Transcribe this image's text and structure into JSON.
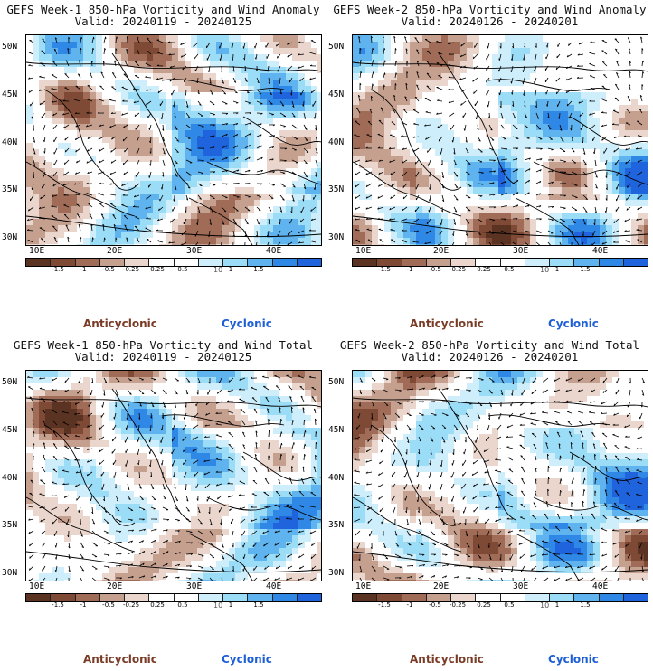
{
  "panels": [
    {
      "title": "GEFS Week-1 850-hPa Vorticity and Wind Anomaly",
      "valid": "Valid: 20240119 - 20240125",
      "variant": 0
    },
    {
      "title": "GEFS Week-2 850-hPa Vorticity and Wind Anomaly",
      "valid": "Valid: 20240126 - 20240201",
      "variant": 1
    },
    {
      "title": "GEFS Week-1 850-hPa Vorticity and Wind Total",
      "valid": "Valid: 20240119 - 20240125",
      "variant": 2
    },
    {
      "title": "GEFS Week-2 850-hPa Vorticity and Wind Total",
      "valid": "Valid: 20240126 - 20240201",
      "variant": 3
    }
  ],
  "lat_labels": [
    "50N",
    "45N",
    "40N",
    "35N",
    "30N"
  ],
  "lon_labels": [
    "10E",
    "20E",
    "30E",
    "40E"
  ],
  "colorbar": {
    "labels": [
      "-1.5",
      "-1",
      "-0.5",
      "-0.25",
      "0.25",
      "0.5",
      "1",
      "1.5"
    ],
    "unit": "10",
    "colors": [
      "#5b3323",
      "#7e4a35",
      "#a06c57",
      "#c6a08f",
      "#ead6cc",
      "#ffffff",
      "#ffffff",
      "#cdeefa",
      "#9bdcf7",
      "#5fb3ee",
      "#2f88e6",
      "#1f64dc"
    ]
  },
  "legend": {
    "anticyclonic": "Anticyclonic",
    "cyclonic": "Cyclonic"
  }
}
